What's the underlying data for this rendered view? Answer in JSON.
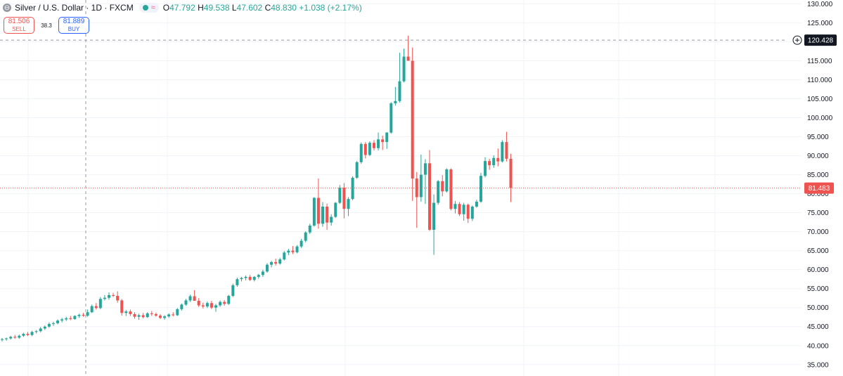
{
  "legend": {
    "title": "Silver / U.S. Dollar · 1D · FXCM",
    "open_label": "O",
    "open": "47.792",
    "high_label": "H",
    "high": "49.538",
    "low_label": "L",
    "low": "47.602",
    "close_label": "C",
    "close": "48.830",
    "change": "+1.038 (+2.17%)"
  },
  "trade": {
    "sell_price": "81.506",
    "sell_label": "SELL",
    "spread": "38.3",
    "buy_price": "81.889",
    "buy_label": "BUY"
  },
  "crosshair": {
    "price": "120.428"
  },
  "last": {
    "price": "81.483"
  },
  "colors": {
    "up": "#26a69a",
    "down": "#ef5350",
    "last_line": "#ef5350",
    "accent": "#2962ff"
  },
  "chart_data": {
    "type": "candlestick",
    "y_axis": {
      "ticks": [
        "35.000",
        "40.000",
        "45.000",
        "50.000",
        "55.000",
        "60.000",
        "65.000",
        "70.000",
        "75.000",
        "80.000",
        "85.000",
        "90.000",
        "95.000",
        "100.000",
        "105.000",
        "110.000",
        "115.000",
        "120.000",
        "125.000",
        "130.000"
      ],
      "range": [
        32,
        131
      ],
      "position": "right"
    },
    "grid": true,
    "series": [
      {
        "o": 41.5,
        "h": 42.0,
        "l": 41.1,
        "c": 41.7
      },
      {
        "o": 41.7,
        "h": 42.1,
        "l": 41.3,
        "c": 41.9
      },
      {
        "o": 41.9,
        "h": 42.6,
        "l": 41.6,
        "c": 42.3
      },
      {
        "o": 42.3,
        "h": 42.8,
        "l": 41.8,
        "c": 42.1
      },
      {
        "o": 42.1,
        "h": 42.9,
        "l": 41.8,
        "c": 42.6
      },
      {
        "o": 42.6,
        "h": 43.4,
        "l": 42.3,
        "c": 43.1
      },
      {
        "o": 43.1,
        "h": 43.6,
        "l": 42.5,
        "c": 42.8
      },
      {
        "o": 42.8,
        "h": 43.9,
        "l": 42.5,
        "c": 43.6
      },
      {
        "o": 43.6,
        "h": 44.1,
        "l": 43.2,
        "c": 43.8
      },
      {
        "o": 43.8,
        "h": 44.9,
        "l": 43.5,
        "c": 44.5
      },
      {
        "o": 44.5,
        "h": 45.3,
        "l": 44.1,
        "c": 45.0
      },
      {
        "o": 45.0,
        "h": 46.1,
        "l": 44.7,
        "c": 45.7
      },
      {
        "o": 45.7,
        "h": 46.3,
        "l": 45.2,
        "c": 45.9
      },
      {
        "o": 45.9,
        "h": 46.9,
        "l": 45.6,
        "c": 46.6
      },
      {
        "o": 46.6,
        "h": 47.3,
        "l": 46.1,
        "c": 46.9
      },
      {
        "o": 46.9,
        "h": 47.6,
        "l": 46.5,
        "c": 47.2
      },
      {
        "o": 47.2,
        "h": 47.8,
        "l": 46.7,
        "c": 47.0
      },
      {
        "o": 47.0,
        "h": 48.0,
        "l": 46.8,
        "c": 47.8
      },
      {
        "o": 47.8,
        "h": 48.4,
        "l": 47.3,
        "c": 48.1
      },
      {
        "o": 48.1,
        "h": 48.6,
        "l": 47.6,
        "c": 47.9
      },
      {
        "o": 47.9,
        "h": 49.5,
        "l": 47.6,
        "c": 48.8
      },
      {
        "o": 48.8,
        "h": 50.8,
        "l": 48.6,
        "c": 50.4
      },
      {
        "o": 50.4,
        "h": 51.2,
        "l": 49.5,
        "c": 49.9
      },
      {
        "o": 49.9,
        "h": 52.8,
        "l": 49.6,
        "c": 52.3
      },
      {
        "o": 52.3,
        "h": 53.3,
        "l": 51.9,
        "c": 52.6
      },
      {
        "o": 52.6,
        "h": 54.0,
        "l": 52.1,
        "c": 53.3
      },
      {
        "o": 53.3,
        "h": 53.9,
        "l": 52.8,
        "c": 53.1
      },
      {
        "o": 53.1,
        "h": 54.3,
        "l": 51.3,
        "c": 51.9
      },
      {
        "o": 51.9,
        "h": 52.3,
        "l": 47.9,
        "c": 48.6
      },
      {
        "o": 48.6,
        "h": 49.4,
        "l": 47.8,
        "c": 49.0
      },
      {
        "o": 49.0,
        "h": 49.5,
        "l": 47.8,
        "c": 48.3
      },
      {
        "o": 48.3,
        "h": 48.8,
        "l": 47.1,
        "c": 47.6
      },
      {
        "o": 47.6,
        "h": 48.4,
        "l": 46.8,
        "c": 48.0
      },
      {
        "o": 48.0,
        "h": 48.6,
        "l": 47.2,
        "c": 47.5
      },
      {
        "o": 47.5,
        "h": 48.8,
        "l": 47.3,
        "c": 48.5
      },
      {
        "o": 48.5,
        "h": 49.1,
        "l": 47.8,
        "c": 48.3
      },
      {
        "o": 48.3,
        "h": 48.7,
        "l": 47.6,
        "c": 47.9
      },
      {
        "o": 47.9,
        "h": 48.3,
        "l": 47.0,
        "c": 47.3
      },
      {
        "o": 47.3,
        "h": 48.0,
        "l": 46.8,
        "c": 47.7
      },
      {
        "o": 47.7,
        "h": 48.5,
        "l": 47.3,
        "c": 48.2
      },
      {
        "o": 48.2,
        "h": 48.8,
        "l": 47.7,
        "c": 48.0
      },
      {
        "o": 48.0,
        "h": 49.9,
        "l": 47.8,
        "c": 49.6
      },
      {
        "o": 49.6,
        "h": 51.1,
        "l": 49.2,
        "c": 50.8
      },
      {
        "o": 50.8,
        "h": 52.3,
        "l": 50.5,
        "c": 51.9
      },
      {
        "o": 51.9,
        "h": 53.4,
        "l": 51.5,
        "c": 53.0
      },
      {
        "o": 53.0,
        "h": 54.6,
        "l": 52.5,
        "c": 51.8
      },
      {
        "o": 51.8,
        "h": 52.5,
        "l": 50.2,
        "c": 50.6
      },
      {
        "o": 50.6,
        "h": 51.3,
        "l": 49.8,
        "c": 50.3
      },
      {
        "o": 50.3,
        "h": 51.6,
        "l": 49.9,
        "c": 51.2
      },
      {
        "o": 51.2,
        "h": 51.8,
        "l": 49.6,
        "c": 50.0
      },
      {
        "o": 50.0,
        "h": 51.0,
        "l": 48.9,
        "c": 50.6
      },
      {
        "o": 50.6,
        "h": 51.9,
        "l": 50.2,
        "c": 51.5
      },
      {
        "o": 51.5,
        "h": 52.0,
        "l": 50.5,
        "c": 51.0
      },
      {
        "o": 51.0,
        "h": 53.4,
        "l": 50.7,
        "c": 53.1
      },
      {
        "o": 53.1,
        "h": 56.3,
        "l": 52.8,
        "c": 55.9
      },
      {
        "o": 55.9,
        "h": 57.9,
        "l": 55.5,
        "c": 57.5
      },
      {
        "o": 57.5,
        "h": 58.1,
        "l": 56.9,
        "c": 57.8
      },
      {
        "o": 57.8,
        "h": 58.5,
        "l": 57.2,
        "c": 58.1
      },
      {
        "o": 58.1,
        "h": 58.6,
        "l": 57.0,
        "c": 57.3
      },
      {
        "o": 57.3,
        "h": 58.3,
        "l": 56.9,
        "c": 58.1
      },
      {
        "o": 58.1,
        "h": 58.9,
        "l": 57.6,
        "c": 58.6
      },
      {
        "o": 58.6,
        "h": 60.0,
        "l": 58.1,
        "c": 59.5
      },
      {
        "o": 59.5,
        "h": 61.7,
        "l": 59.2,
        "c": 61.3
      },
      {
        "o": 61.3,
        "h": 62.3,
        "l": 60.6,
        "c": 62.0
      },
      {
        "o": 62.0,
        "h": 62.9,
        "l": 61.1,
        "c": 61.6
      },
      {
        "o": 61.6,
        "h": 63.1,
        "l": 61.3,
        "c": 62.7
      },
      {
        "o": 62.7,
        "h": 64.9,
        "l": 62.4,
        "c": 64.5
      },
      {
        "o": 64.5,
        "h": 65.5,
        "l": 63.8,
        "c": 65.0
      },
      {
        "o": 65.0,
        "h": 66.2,
        "l": 64.1,
        "c": 64.6
      },
      {
        "o": 64.6,
        "h": 66.4,
        "l": 64.3,
        "c": 66.1
      },
      {
        "o": 66.1,
        "h": 68.1,
        "l": 65.7,
        "c": 67.6
      },
      {
        "o": 67.6,
        "h": 70.1,
        "l": 67.2,
        "c": 69.8
      },
      {
        "o": 69.8,
        "h": 72.1,
        "l": 69.4,
        "c": 71.6
      },
      {
        "o": 71.6,
        "h": 79.1,
        "l": 71.3,
        "c": 78.9
      },
      {
        "o": 78.9,
        "h": 84.0,
        "l": 70.8,
        "c": 72.1
      },
      {
        "o": 72.1,
        "h": 77.8,
        "l": 71.3,
        "c": 76.6
      },
      {
        "o": 76.6,
        "h": 77.4,
        "l": 70.5,
        "c": 72.4
      },
      {
        "o": 72.4,
        "h": 74.6,
        "l": 71.6,
        "c": 73.9
      },
      {
        "o": 73.9,
        "h": 77.8,
        "l": 73.6,
        "c": 77.6
      },
      {
        "o": 77.6,
        "h": 82.3,
        "l": 77.3,
        "c": 81.6
      },
      {
        "o": 81.6,
        "h": 82.8,
        "l": 73.5,
        "c": 76.0
      },
      {
        "o": 76.0,
        "h": 79.1,
        "l": 74.1,
        "c": 78.6
      },
      {
        "o": 78.6,
        "h": 84.6,
        "l": 78.3,
        "c": 84.2
      },
      {
        "o": 84.2,
        "h": 88.6,
        "l": 83.9,
        "c": 88.3
      },
      {
        "o": 88.3,
        "h": 93.5,
        "l": 87.9,
        "c": 93.1
      },
      {
        "o": 93.1,
        "h": 93.6,
        "l": 89.3,
        "c": 90.2
      },
      {
        "o": 90.2,
        "h": 93.8,
        "l": 89.9,
        "c": 93.4
      },
      {
        "o": 93.4,
        "h": 94.1,
        "l": 91.4,
        "c": 92.0
      },
      {
        "o": 92.0,
        "h": 96.1,
        "l": 91.4,
        "c": 94.3
      },
      {
        "o": 94.3,
        "h": 95.3,
        "l": 91.5,
        "c": 93.6
      },
      {
        "o": 93.6,
        "h": 96.2,
        "l": 91.8,
        "c": 96.1
      },
      {
        "o": 96.1,
        "h": 104.1,
        "l": 95.8,
        "c": 103.8
      },
      {
        "o": 103.8,
        "h": 108.1,
        "l": 103.2,
        "c": 104.4
      },
      {
        "o": 104.4,
        "h": 117.1,
        "l": 104.0,
        "c": 109.6
      },
      {
        "o": 109.6,
        "h": 118.2,
        "l": 109.3,
        "c": 116.1
      },
      {
        "o": 116.1,
        "h": 121.6,
        "l": 115.3,
        "c": 115.0
      },
      {
        "o": 115.0,
        "h": 118.5,
        "l": 78.1,
        "c": 84.0
      },
      {
        "o": 84.0,
        "h": 85.7,
        "l": 71.0,
        "c": 79.1
      },
      {
        "o": 79.1,
        "h": 90.3,
        "l": 77.9,
        "c": 85.0
      },
      {
        "o": 85.0,
        "h": 89.1,
        "l": 77.3,
        "c": 88.0
      },
      {
        "o": 88.0,
        "h": 91.5,
        "l": 70.2,
        "c": 70.5
      },
      {
        "o": 70.5,
        "h": 79.8,
        "l": 63.9,
        "c": 77.6
      },
      {
        "o": 77.6,
        "h": 83.6,
        "l": 77.1,
        "c": 83.3
      },
      {
        "o": 83.3,
        "h": 84.9,
        "l": 79.3,
        "c": 80.6
      },
      {
        "o": 80.6,
        "h": 86.7,
        "l": 80.3,
        "c": 86.4
      },
      {
        "o": 86.4,
        "h": 86.7,
        "l": 75.6,
        "c": 76.0
      },
      {
        "o": 76.0,
        "h": 78.1,
        "l": 74.8,
        "c": 77.3
      },
      {
        "o": 77.3,
        "h": 77.8,
        "l": 74.1,
        "c": 74.6
      },
      {
        "o": 74.6,
        "h": 77.6,
        "l": 72.9,
        "c": 77.1
      },
      {
        "o": 77.1,
        "h": 77.4,
        "l": 72.3,
        "c": 73.4
      },
      {
        "o": 73.4,
        "h": 76.9,
        "l": 72.8,
        "c": 76.6
      },
      {
        "o": 76.6,
        "h": 78.4,
        "l": 76.3,
        "c": 77.9
      },
      {
        "o": 77.9,
        "h": 85.5,
        "l": 77.6,
        "c": 84.7
      },
      {
        "o": 84.7,
        "h": 89.6,
        "l": 84.3,
        "c": 88.6
      },
      {
        "o": 88.6,
        "h": 89.2,
        "l": 86.3,
        "c": 87.5
      },
      {
        "o": 87.5,
        "h": 90.1,
        "l": 86.8,
        "c": 89.4
      },
      {
        "o": 89.4,
        "h": 91.9,
        "l": 87.2,
        "c": 88.5
      },
      {
        "o": 88.5,
        "h": 94.1,
        "l": 88.2,
        "c": 93.6
      },
      {
        "o": 93.6,
        "h": 96.3,
        "l": 88.5,
        "c": 89.2
      },
      {
        "o": 89.2,
        "h": 90.5,
        "l": 77.8,
        "c": 81.5
      }
    ]
  }
}
